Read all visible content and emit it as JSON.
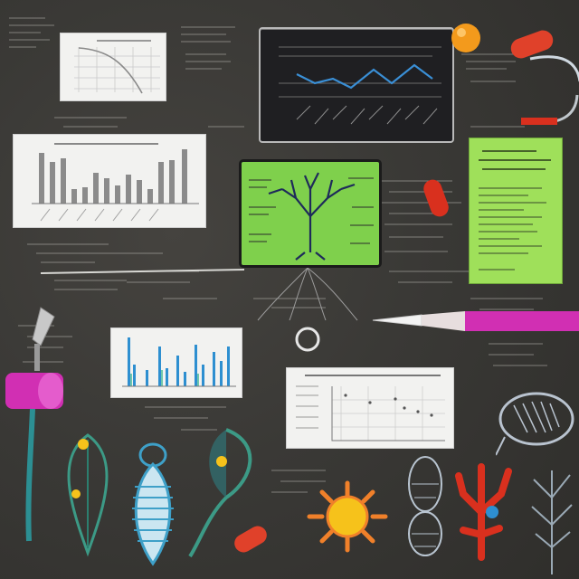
{
  "scene": {
    "background": "#3b3a37",
    "accent_colors": {
      "magenta": "#d12fb3",
      "green": "#8ed64f",
      "orange": "#f6a21a",
      "red": "#d9301e",
      "teal": "#2c8f93",
      "blue": "#2e8fd0"
    }
  },
  "elements": {
    "top_left_paper_chart": {
      "icon": "line-chart-icon"
    },
    "top_center_monitor": {
      "icon": "zigzag-line-chart-icon",
      "line_color": "#3a8fd6"
    },
    "left_bar_chart": {
      "icon": "bar-chart-icon"
    },
    "center_green_monitor": {
      "icon": "branching-tree-icon"
    },
    "right_green_card": {
      "icon": "document-icon"
    },
    "middle_bar_chart": {
      "icon": "bar-chart-icon"
    },
    "right_scatter_chart": {
      "icon": "scatter-chart-icon"
    },
    "pencil": {
      "icon": "pencil-icon",
      "color": "#d12fb3"
    },
    "microscope_tool": {
      "icon": "pipette-icon",
      "color": "#d12fb3"
    },
    "capsules": {
      "icon": "capsule-icon",
      "color": "#e0412a"
    },
    "orange_ball": {
      "icon": "orange-ball-icon",
      "color": "#f39a1c"
    },
    "bacteria_sun": {
      "icon": "sun-cell-icon",
      "color": "#f6c21b"
    },
    "red_coral": {
      "icon": "coral-icon",
      "color": "#d9301e"
    },
    "trilobite": {
      "icon": "trilobite-icon",
      "color": "#3ea0c8"
    },
    "leaf_organism": {
      "icon": "leaf-cell-icon",
      "color": "#3c9a86"
    },
    "shell_fish": {
      "icon": "shell-icon",
      "color": "#b8c4d0"
    },
    "grey_moth": {
      "icon": "moth-icon",
      "color": "#b9c3cf"
    },
    "branch_twig": {
      "icon": "twig-icon",
      "color": "#9aa9b5"
    }
  }
}
